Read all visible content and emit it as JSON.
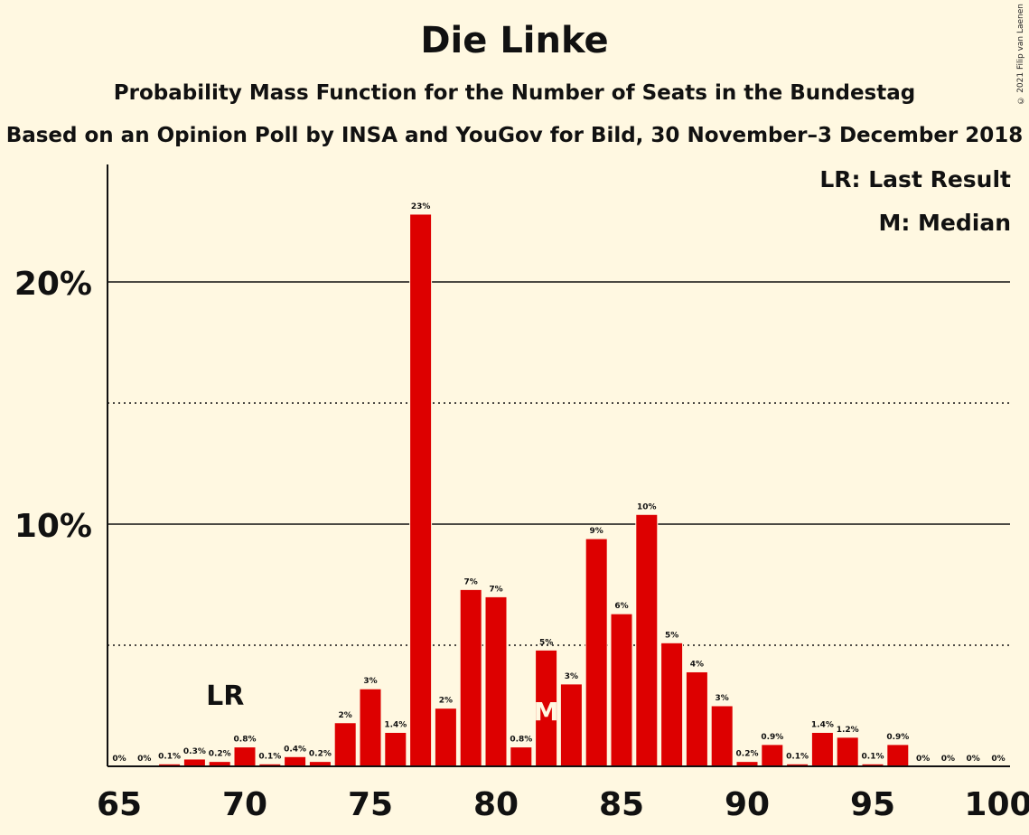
{
  "title": "Die Linke",
  "subtitle": "Probability Mass Function for the Number of Seats in the Bundestag",
  "subtitle2": "Based on an Opinion Poll by INSA and YouGov for Bild, 30 November–3 December 2018",
  "copyright": "© 2021 Filip van Laenen",
  "legend": {
    "last_result": "LR: Last Result",
    "median": "M: Median"
  },
  "colors": {
    "bar": "#DD0000",
    "background": "#FFF8E1",
    "text": "#111111"
  },
  "chart_data": {
    "type": "bar",
    "x": [
      65,
      66,
      67,
      68,
      69,
      70,
      71,
      72,
      73,
      74,
      75,
      76,
      77,
      78,
      79,
      80,
      81,
      82,
      83,
      84,
      85,
      86,
      87,
      88,
      89,
      90,
      91,
      92,
      93,
      94,
      95,
      96,
      97,
      98,
      99,
      100
    ],
    "values": [
      0,
      0,
      0.1,
      0.3,
      0.2,
      0.8,
      0.1,
      0.4,
      0.2,
      2,
      3,
      1.4,
      23,
      2,
      7,
      7,
      0.8,
      5,
      3,
      9,
      6,
      10,
      5,
      4,
      3,
      0.2,
      0.9,
      0.1,
      1.4,
      1.2,
      0.1,
      0.9,
      0,
      0,
      0,
      0
    ],
    "plot_values": [
      0,
      0,
      0.1,
      0.3,
      0.2,
      0.8,
      0.1,
      0.4,
      0.2,
      1.8,
      3.2,
      1.4,
      22.8,
      2.4,
      7.3,
      7.0,
      0.8,
      4.8,
      3.4,
      9.4,
      6.3,
      10.4,
      5.1,
      3.9,
      2.5,
      0.2,
      0.9,
      0.1,
      1.4,
      1.2,
      0.1,
      0.9,
      0,
      0,
      0,
      0
    ],
    "labels": [
      "0%",
      "0%",
      "0.1%",
      "0.3%",
      "0.2%",
      "0.8%",
      "0.1%",
      "0.4%",
      "0.2%",
      "2%",
      "3%",
      "1.4%",
      "23%",
      "2%",
      "7%",
      "7%",
      "0.8%",
      "5%",
      "3%",
      "9%",
      "6%",
      "10%",
      "5%",
      "4%",
      "3%",
      "0.2%",
      "0.9%",
      "0.1%",
      "1.4%",
      "1.2%",
      "0.1%",
      "0.9%",
      "0%",
      "0%",
      "0%",
      "0%"
    ],
    "xticks": [
      65,
      70,
      75,
      80,
      85,
      90,
      95,
      100
    ],
    "yticks": [
      {
        "value": 10,
        "label": "10%"
      },
      {
        "value": 20,
        "label": "20%"
      }
    ],
    "dotted_gridlines": [
      5,
      15
    ],
    "ylim": [
      0,
      25
    ],
    "last_result": {
      "seat": 69,
      "label": "LR"
    },
    "median": {
      "seat": 82,
      "label": "M"
    }
  }
}
